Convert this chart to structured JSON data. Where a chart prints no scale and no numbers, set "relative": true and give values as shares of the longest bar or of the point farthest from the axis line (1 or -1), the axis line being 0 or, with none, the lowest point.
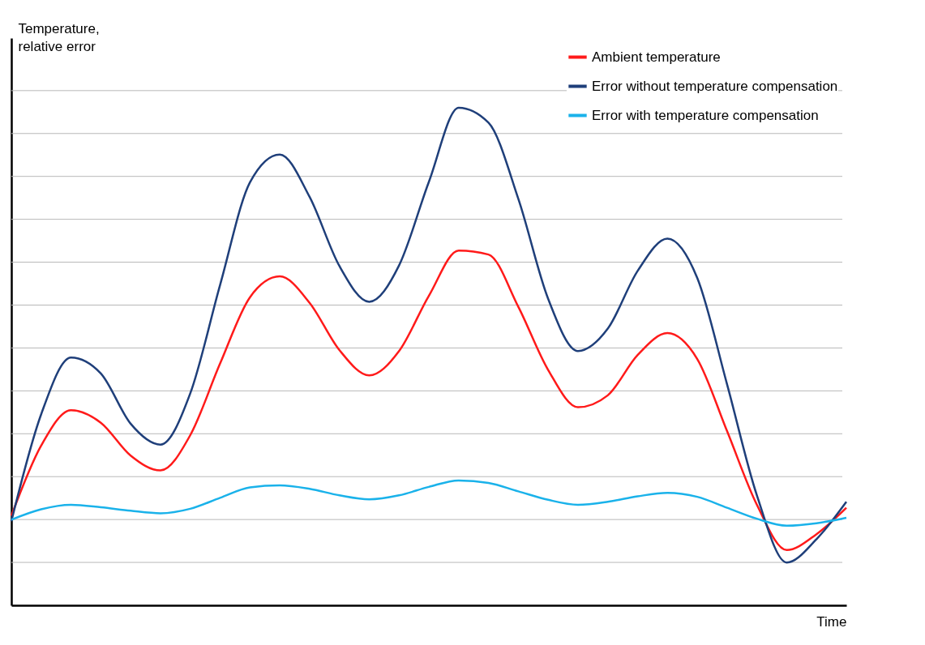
{
  "chart_data": {
    "type": "line",
    "relative": true,
    "ylabel": "Temperature,\nrelative error",
    "xlabel": "Time",
    "categories": [
      null,
      null,
      null,
      null,
      null,
      null,
      null,
      null,
      null,
      null,
      null,
      null,
      null,
      null,
      null,
      null,
      null,
      null,
      null,
      null,
      null,
      null,
      null,
      null,
      null,
      null,
      null,
      null,
      null
    ],
    "series": [
      {
        "name": "Ambient temperature",
        "color": "#ff1a1a",
        "values": [
          0.18,
          0.321,
          0.392,
          0.367,
          0.301,
          0.271,
          0.342,
          0.486,
          0.619,
          0.661,
          0.608,
          0.513,
          0.462,
          0.511,
          0.622,
          0.713,
          0.705,
          0.6,
          0.473,
          0.398,
          0.422,
          0.503,
          0.547,
          0.495,
          0.35,
          0.202,
          0.111,
          0.143,
          0.196
        ]
      },
      {
        "name": "Error without temperature compensation",
        "color": "#1f3f7a",
        "values": [
          0.169,
          0.384,
          0.498,
          0.466,
          0.365,
          0.323,
          0.426,
          0.644,
          0.85,
          0.906,
          0.821,
          0.682,
          0.61,
          0.683,
          0.851,
          1.0,
          0.97,
          0.817,
          0.616,
          0.511,
          0.556,
          0.672,
          0.737,
          0.658,
          0.444,
          0.221,
          0.086,
          0.133,
          0.208
        ]
      },
      {
        "name": "Error with temperature compensation",
        "color": "#1ab2ea",
        "values": [
          0.172,
          0.193,
          0.202,
          0.197,
          0.19,
          0.185,
          0.194,
          0.216,
          0.237,
          0.241,
          0.234,
          0.221,
          0.213,
          0.221,
          0.238,
          0.251,
          0.246,
          0.229,
          0.212,
          0.202,
          0.208,
          0.219,
          0.226,
          0.218,
          0.196,
          0.174,
          0.16,
          0.165,
          0.176
        ]
      }
    ],
    "grid": "y",
    "legend": "top right"
  }
}
